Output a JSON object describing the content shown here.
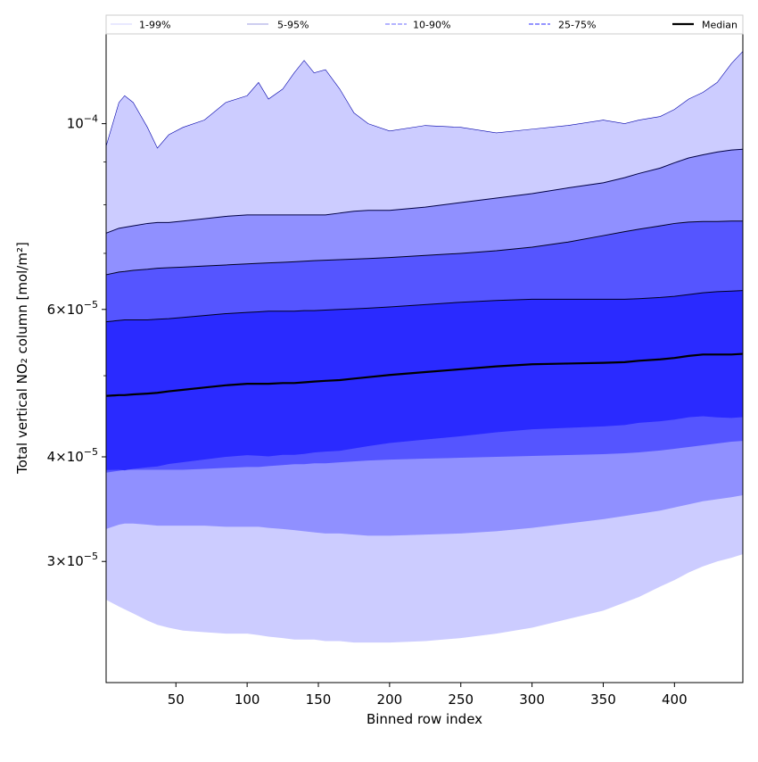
{
  "chart_data": {
    "type": "area",
    "title": "",
    "xlabel": "Binned row index",
    "ylabel": "Total vertical NO₂ column [mol/m²]",
    "xlim": [
      1,
      448
    ],
    "ylim": [
      2.15e-05,
      0.000128
    ],
    "yscale": "log",
    "grid": false,
    "legend_position": "top",
    "x_ticks": [
      50,
      100,
      150,
      200,
      250,
      300,
      350,
      400
    ],
    "x_tick_labels": [
      "50",
      "100",
      "150",
      "200",
      "250",
      "300",
      "350",
      "400"
    ],
    "y_ticks": [
      {
        "value": 0.0001,
        "mantissa": "",
        "exp": "−4"
      },
      {
        "value": 6e-05,
        "mantissa": "6",
        "exp": "−5"
      },
      {
        "value": 4e-05,
        "mantissa": "4",
        "exp": "−5"
      },
      {
        "value": 3e-05,
        "mantissa": "3",
        "exp": "−5"
      }
    ],
    "y_minor_ticks": [
      5e-05,
      7e-05,
      8e-05,
      9e-05
    ],
    "x": [
      1,
      10,
      14,
      20,
      30,
      37,
      45,
      55,
      70,
      85,
      100,
      108,
      115,
      125,
      133,
      140,
      147,
      155,
      165,
      175,
      185,
      200,
      225,
      250,
      275,
      300,
      325,
      350,
      365,
      375,
      390,
      400,
      410,
      420,
      430,
      440,
      448
    ],
    "bands": [
      {
        "name": "1-99%",
        "fill": "#ccccff",
        "line": "#0000aa",
        "upper": [
          9.4e-05,
          0.000106,
          0.000108,
          0.000106,
          9.9e-05,
          9.35e-05,
          9.7e-05,
          9.9e-05,
          0.000101,
          0.000106,
          0.000108,
          0.000112,
          0.000107,
          0.00011,
          0.000115,
          0.000119,
          0.000115,
          0.000116,
          0.00011,
          0.000103,
          0.0001,
          9.8e-05,
          9.95e-05,
          9.9e-05,
          9.75e-05,
          9.85e-05,
          9.95e-05,
          0.000101,
          0.0001,
          0.000101,
          0.000102,
          0.000104,
          0.000107,
          0.000109,
          0.000112,
          0.000118,
          0.000122
        ],
        "lower": [
          2.7e-05,
          2.65e-05,
          2.63e-05,
          2.6e-05,
          2.55e-05,
          2.52e-05,
          2.5e-05,
          2.48e-05,
          2.47e-05,
          2.46e-05,
          2.46e-05,
          2.45e-05,
          2.44e-05,
          2.43e-05,
          2.42e-05,
          2.42e-05,
          2.42e-05,
          2.41e-05,
          2.41e-05,
          2.4e-05,
          2.4e-05,
          2.4e-05,
          2.41e-05,
          2.43e-05,
          2.46e-05,
          2.5e-05,
          2.56e-05,
          2.62e-05,
          2.68e-05,
          2.72e-05,
          2.8e-05,
          2.85e-05,
          2.91e-05,
          2.96e-05,
          3e-05,
          3.03e-05,
          3.06e-05
        ]
      },
      {
        "name": "5-95%",
        "fill": "#9090ff",
        "line": "#000044",
        "upper": [
          7.4e-05,
          7.5e-05,
          7.52e-05,
          7.55e-05,
          7.6e-05,
          7.62e-05,
          7.62e-05,
          7.65e-05,
          7.7e-05,
          7.75e-05,
          7.78e-05,
          7.78e-05,
          7.78e-05,
          7.78e-05,
          7.78e-05,
          7.78e-05,
          7.78e-05,
          7.78e-05,
          7.82e-05,
          7.86e-05,
          7.88e-05,
          7.88e-05,
          7.95e-05,
          8.05e-05,
          8.15e-05,
          8.25e-05,
          8.38e-05,
          8.5e-05,
          8.62e-05,
          8.72e-05,
          8.85e-05,
          8.98e-05,
          9.1e-05,
          9.18e-05,
          9.25e-05,
          9.3e-05,
          9.32e-05
        ],
        "lower": [
          3.28e-05,
          3.32e-05,
          3.33e-05,
          3.33e-05,
          3.32e-05,
          3.31e-05,
          3.31e-05,
          3.31e-05,
          3.31e-05,
          3.3e-05,
          3.3e-05,
          3.3e-05,
          3.29e-05,
          3.28e-05,
          3.27e-05,
          3.26e-05,
          3.25e-05,
          3.24e-05,
          3.24e-05,
          3.23e-05,
          3.22e-05,
          3.22e-05,
          3.23e-05,
          3.24e-05,
          3.26e-05,
          3.29e-05,
          3.33e-05,
          3.37e-05,
          3.4e-05,
          3.42e-05,
          3.45e-05,
          3.48e-05,
          3.51e-05,
          3.54e-05,
          3.56e-05,
          3.58e-05,
          3.6e-05
        ]
      },
      {
        "name": "10-90%",
        "fill": "#5555ff",
        "line": "#000022",
        "upper": [
          6.6e-05,
          6.65e-05,
          6.66e-05,
          6.68e-05,
          6.7e-05,
          6.72e-05,
          6.73e-05,
          6.74e-05,
          6.76e-05,
          6.78e-05,
          6.8e-05,
          6.81e-05,
          6.82e-05,
          6.83e-05,
          6.84e-05,
          6.85e-05,
          6.86e-05,
          6.87e-05,
          6.88e-05,
          6.89e-05,
          6.9e-05,
          6.92e-05,
          6.96e-05,
          7e-05,
          7.05e-05,
          7.12e-05,
          7.22e-05,
          7.35e-05,
          7.43e-05,
          7.48e-05,
          7.55e-05,
          7.6e-05,
          7.63e-05,
          7.64e-05,
          7.64e-05,
          7.65e-05,
          7.65e-05
        ],
        "lower": [
          3.83e-05,
          3.85e-05,
          3.86e-05,
          3.86e-05,
          3.86e-05,
          3.86e-05,
          3.86e-05,
          3.86e-05,
          3.87e-05,
          3.88e-05,
          3.89e-05,
          3.89e-05,
          3.9e-05,
          3.91e-05,
          3.92e-05,
          3.92e-05,
          3.93e-05,
          3.93e-05,
          3.94e-05,
          3.95e-05,
          3.96e-05,
          3.97e-05,
          3.98e-05,
          3.99e-05,
          4e-05,
          4.01e-05,
          4.02e-05,
          4.03e-05,
          4.04e-05,
          4.05e-05,
          4.07e-05,
          4.09e-05,
          4.11e-05,
          4.13e-05,
          4.15e-05,
          4.17e-05,
          4.18e-05
        ]
      },
      {
        "name": "25-75%",
        "fill": "#2a2aff",
        "line": "#000022",
        "upper": [
          5.8e-05,
          5.82e-05,
          5.83e-05,
          5.83e-05,
          5.83e-05,
          5.84e-05,
          5.85e-05,
          5.87e-05,
          5.9e-05,
          5.93e-05,
          5.95e-05,
          5.96e-05,
          5.97e-05,
          5.97e-05,
          5.97e-05,
          5.98e-05,
          5.98e-05,
          5.99e-05,
          6e-05,
          6.01e-05,
          6.02e-05,
          6.04e-05,
          6.08e-05,
          6.12e-05,
          6.15e-05,
          6.17e-05,
          6.17e-05,
          6.17e-05,
          6.17e-05,
          6.18e-05,
          6.2e-05,
          6.22e-05,
          6.25e-05,
          6.28e-05,
          6.3e-05,
          6.31e-05,
          6.32e-05
        ]
      }
    ],
    "median": {
      "name": "Median",
      "color": "#000000",
      "values": [
        4.73e-05,
        4.74e-05,
        4.74e-05,
        4.75e-05,
        4.76e-05,
        4.77e-05,
        4.79e-05,
        4.81e-05,
        4.84e-05,
        4.87e-05,
        4.89e-05,
        4.89e-05,
        4.89e-05,
        4.9e-05,
        4.9e-05,
        4.91e-05,
        4.92e-05,
        4.93e-05,
        4.94e-05,
        4.96e-05,
        4.98e-05,
        5.01e-05,
        5.05e-05,
        5.09e-05,
        5.13e-05,
        5.16e-05,
        5.17e-05,
        5.18e-05,
        5.19e-05,
        5.21e-05,
        5.23e-05,
        5.25e-05,
        5.28e-05,
        5.3e-05,
        5.3e-05,
        5.3e-05,
        5.31e-05
      ]
    },
    "legend": [
      {
        "label": "1-99%",
        "color": "#dcdcff",
        "style": "solid"
      },
      {
        "label": "5-95%",
        "color": "#b0b0e8",
        "style": "solid"
      },
      {
        "label": "10-90%",
        "color": "#8888ff",
        "style": "dashed"
      },
      {
        "label": "25-75%",
        "color": "#5555ff",
        "style": "dashed"
      },
      {
        "label": "Median",
        "color": "#000000",
        "style": "solid-thick"
      }
    ]
  }
}
